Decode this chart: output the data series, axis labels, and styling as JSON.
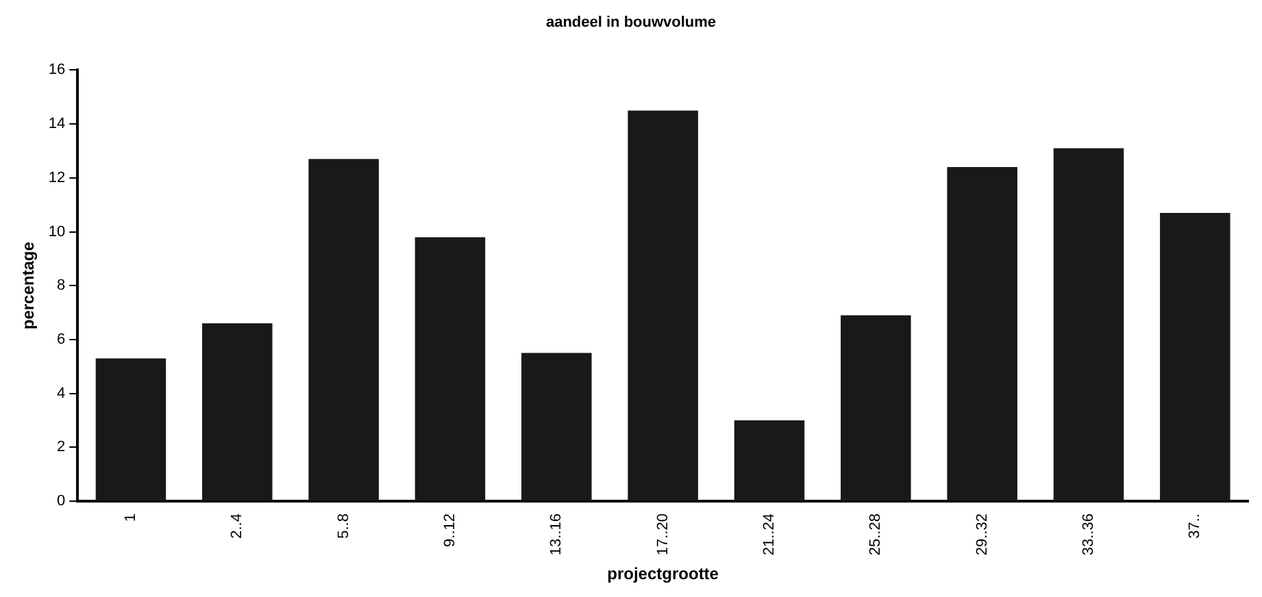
{
  "chart_data": {
    "type": "bar",
    "title": "aandeel in bouwvolume",
    "xlabel": "projectgrootte",
    "ylabel": "percentage",
    "categories": [
      "1",
      "2..4",
      "5..8",
      "9..12",
      "13..16",
      "17..20",
      "21..24",
      "25..28",
      "29..32",
      "33..36",
      "37.."
    ],
    "values": [
      5.3,
      6.6,
      12.7,
      9.8,
      5.5,
      14.5,
      3.0,
      6.9,
      12.4,
      13.1,
      10.7
    ],
    "color": "#191919",
    "ylim": [
      0,
      16
    ],
    "yticks": [
      0,
      2,
      4,
      6,
      8,
      10,
      12,
      14,
      16
    ],
    "grid": false,
    "legend": false
  }
}
